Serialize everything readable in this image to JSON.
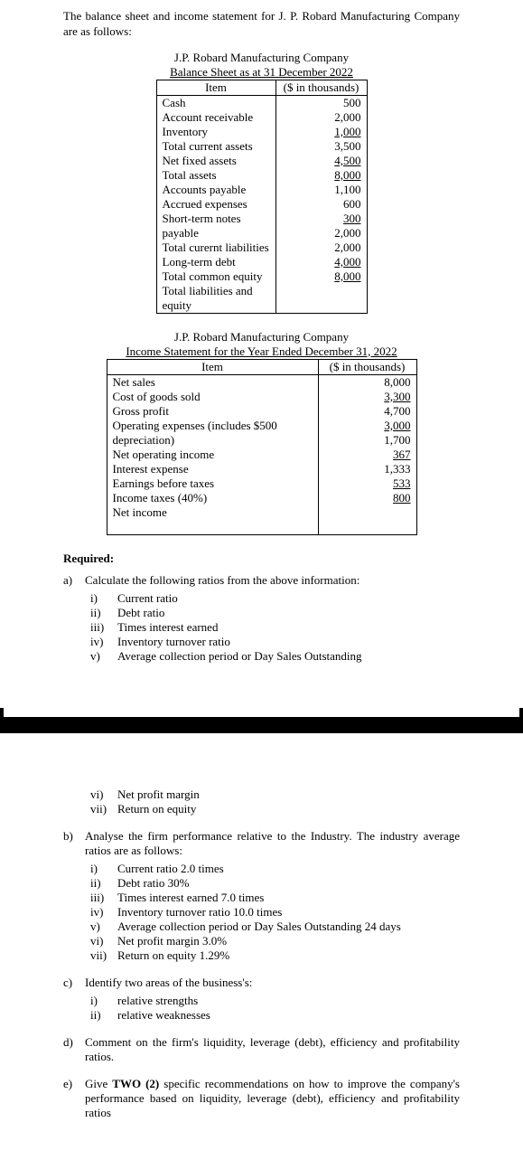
{
  "intro": "The balance sheet and income statement for J. P. Robard Manufacturing Company are as follows:",
  "bs": {
    "company": "J.P. Robard Manufacturing Company",
    "title": "Balance Sheet as at 31 December 2022",
    "h1": "Item",
    "h2": "($ in thousands)",
    "rows": [
      {
        "label": "Cash",
        "val": "500",
        "u": false
      },
      {
        "label": "Account receivable",
        "val": "2,000",
        "u": false
      },
      {
        "label": "Inventory",
        "val": "1,000",
        "u": true
      },
      {
        "label": "Total current assets",
        "val": "3,500",
        "u": false
      },
      {
        "label": "Net fixed assets",
        "val": "4,500",
        "u": true
      },
      {
        "label": "Total assets",
        "val": "8,000",
        "u": true
      },
      {
        "label": "Accounts payable",
        "val": "1,100",
        "u": false
      },
      {
        "label": "Accrued expenses",
        "val": "600",
        "u": false
      },
      {
        "label": "Short-term notes payable",
        "val": "300",
        "u": true
      },
      {
        "label": "Total curernt liabilities",
        "val": "2,000",
        "u": false
      },
      {
        "label": "Long-term debt",
        "val": "2,000",
        "u": false
      },
      {
        "label": "Total common equity",
        "val": "4,000",
        "u": true
      },
      {
        "label": "Total liabilities and equity",
        "val": "8,000",
        "u": true
      }
    ]
  },
  "is": {
    "company": "J.P. Robard Manufacturing Company",
    "title": "Income Statement for the Year Ended December 31, 2022",
    "h1": "Item",
    "h2": "($ in thousands)",
    "rows": [
      {
        "label": "Net sales",
        "val": "8,000",
        "u": false
      },
      {
        "label": "Cost of goods sold",
        "val": "3,300",
        "u": true
      },
      {
        "label": "Gross profit",
        "val": "4,700",
        "u": false
      },
      {
        "label": "Operating expenses (includes $500 depreciation)",
        "val": "3,000",
        "u": true
      },
      {
        "label": "Net operating income",
        "val": "1,700",
        "u": false
      },
      {
        "label": "Interest expense",
        "val": "367",
        "u": true
      },
      {
        "label": "Earnings before taxes",
        "val": "1,333",
        "u": false
      },
      {
        "label": "Income taxes (40%)",
        "val": "533",
        "u": true
      },
      {
        "label": "Net income",
        "val": "800",
        "u": true
      }
    ]
  },
  "required": "Required:",
  "qa": {
    "label": "a)",
    "text": "Calculate the following ratios from the above information:",
    "subs1": [
      {
        "n": "i)",
        "t": "Current ratio"
      },
      {
        "n": "ii)",
        "t": "Debt ratio"
      },
      {
        "n": "iii)",
        "t": "Times interest earned"
      },
      {
        "n": "iv)",
        "t": "Inventory turnover ratio"
      },
      {
        "n": "v)",
        "t": "Average collection period or Day Sales Outstanding"
      }
    ],
    "subs2": [
      {
        "n": "vi)",
        "t": "Net profit margin"
      },
      {
        "n": "vii)",
        "t": "Return on equity"
      }
    ]
  },
  "qb": {
    "label": "b)",
    "text": "Analyse the firm performance relative to the Industry. The industry average ratios are as follows:",
    "subs": [
      {
        "n": "i)",
        "t": "Current ratio   2.0 times"
      },
      {
        "n": "ii)",
        "t": "Debt ratio        30%"
      },
      {
        "n": "iii)",
        "t": "Times interest earned    7.0 times"
      },
      {
        "n": "iv)",
        "t": "Inventory turnover ratio    10.0 times"
      },
      {
        "n": "v)",
        "t": "Average collection period or Day Sales Outstanding    24 days"
      },
      {
        "n": "vi)",
        "t": "Net profit margin    3.0%"
      },
      {
        "n": "vii)",
        "t": "Return on equity    1.29%"
      }
    ]
  },
  "qc": {
    "label": "c)",
    "text": "Identify two areas of the business's:",
    "subs": [
      {
        "n": "i)",
        "t": "relative strengths"
      },
      {
        "n": "ii)",
        "t": "relative weaknesses"
      }
    ]
  },
  "qd": {
    "label": "d)",
    "text": "Comment on the firm's liquidity, leverage (debt), efficiency and profitability ratios."
  },
  "qe": {
    "label": "e)",
    "pre": "Give ",
    "bold": "TWO (2)",
    "post": " specific recommendations on how to improve the company's performance based on liquidity, leverage (debt), efficiency and profitability ratios"
  }
}
